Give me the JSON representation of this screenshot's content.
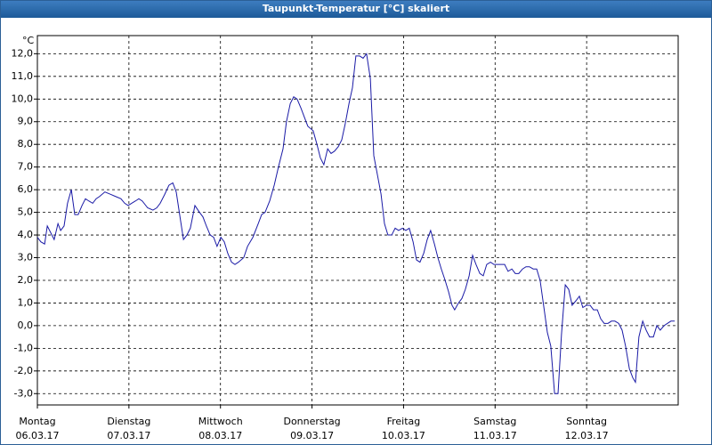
{
  "chart_data": {
    "type": "line",
    "title": "Taupunkt-Temperatur [°C] skaliert",
    "y_unit": "°C",
    "xlim": [
      0,
      168
    ],
    "ylim": [
      -3.5,
      12.8
    ],
    "grid": true,
    "xticks": [
      {
        "value": 0,
        "label": "Montag",
        "sublabel": "06.03.17"
      },
      {
        "value": 24,
        "label": "Dienstag",
        "sublabel": "07.03.17"
      },
      {
        "value": 48,
        "label": "Mittwoch",
        "sublabel": "08.03.17"
      },
      {
        "value": 72,
        "label": "Donnerstag",
        "sublabel": "09.03.17"
      },
      {
        "value": 96,
        "label": "Freitag",
        "sublabel": "10.03.17"
      },
      {
        "value": 120,
        "label": "Samstag",
        "sublabel": "11.03.17"
      },
      {
        "value": 144,
        "label": "Sonntag",
        "sublabel": "12.03.17"
      }
    ],
    "yticks": [
      {
        "value": 12,
        "label": "12,0"
      },
      {
        "value": 11,
        "label": "11,0"
      },
      {
        "value": 10,
        "label": "10,0"
      },
      {
        "value": 9,
        "label": "9,0"
      },
      {
        "value": 8,
        "label": "8,0"
      },
      {
        "value": 7,
        "label": "7,0"
      },
      {
        "value": 6,
        "label": "6,0"
      },
      {
        "value": 5,
        "label": "5,0"
      },
      {
        "value": 4,
        "label": "4,0"
      },
      {
        "value": 3,
        "label": "3,0"
      },
      {
        "value": 2,
        "label": "2,0"
      },
      {
        "value": 1,
        "label": "1,0"
      },
      {
        "value": 0,
        "label": "0,0"
      },
      {
        "value": -1,
        "label": "-1,0"
      },
      {
        "value": -2,
        "label": "-2,0"
      },
      {
        "value": -3,
        "label": "-3,0"
      }
    ],
    "series": [
      {
        "color": "#1a1aa6",
        "x": [
          0,
          0.9,
          1.9,
          2.6,
          3.5,
          4.4,
          5.4,
          6.1,
          7.0,
          7.9,
          8.9,
          9.8,
          10.7,
          11.7,
          12.6,
          13.5,
          14.5,
          15.4,
          16.3,
          17.7,
          19.1,
          20.5,
          21.9,
          22.9,
          23.8,
          24.7,
          25.7,
          26.6,
          27.5,
          28.9,
          30.3,
          31.3,
          32.2,
          33.4,
          34.5,
          35.5,
          36.4,
          37.3,
          38.3,
          39.2,
          40.1,
          41.3,
          42.5,
          43.4,
          44.3,
          45.3,
          46.2,
          47.1,
          48.1,
          49.0,
          49.9,
          50.9,
          51.8,
          52.7,
          54.1,
          55.1,
          56.5,
          57.9,
          58.8,
          59.7,
          60.9,
          62.1,
          63.2,
          64.4,
          65.3,
          66.3,
          67.2,
          68.1,
          69.1,
          70.0,
          70.9,
          72.3,
          73.3,
          74.2,
          75.1,
          76.1,
          77.0,
          77.9,
          78.9,
          79.8,
          80.7,
          81.7,
          82.6,
          83.5,
          84.5,
          85.4,
          86.3,
          87.3,
          88.2,
          89.1,
          90.1,
          91.0,
          91.9,
          92.9,
          93.8,
          94.7,
          95.7,
          96.6,
          97.5,
          98.5,
          99.4,
          100.3,
          101.3,
          102.2,
          103.1,
          104.1,
          105.0,
          105.9,
          106.9,
          107.8,
          108.7,
          109.4,
          110.4,
          111.3,
          112.2,
          113.2,
          114.1,
          115.0,
          116.0,
          116.9,
          117.8,
          118.8,
          119.7,
          120.6,
          121.6,
          122.5,
          123.4,
          124.4,
          125.3,
          126.2,
          127.2,
          128.1,
          129.0,
          130.0,
          130.9,
          131.8,
          132.8,
          133.7,
          134.6,
          135.6,
          136.5,
          137.4,
          138.4,
          139.3,
          140.2,
          141.2,
          142.1,
          143.0,
          144.0,
          144.9,
          145.8,
          146.8,
          147.7,
          148.6,
          149.6,
          150.5,
          151.4,
          152.4,
          153.3,
          154.2,
          155.2,
          156.1,
          156.8,
          157.7,
          158.7,
          159.6,
          160.5,
          161.5,
          162.4,
          163.3,
          164.3,
          165.2,
          166.1,
          167.1
        ],
        "values": [
          3.9,
          3.7,
          3.6,
          4.4,
          4.1,
          3.8,
          4.5,
          4.2,
          4.4,
          5.4,
          6.0,
          4.9,
          4.9,
          5.3,
          5.6,
          5.5,
          5.4,
          5.6,
          5.7,
          5.9,
          5.8,
          5.7,
          5.6,
          5.4,
          5.3,
          5.4,
          5.5,
          5.6,
          5.5,
          5.2,
          5.1,
          5.2,
          5.4,
          5.8,
          6.2,
          6.3,
          5.9,
          4.9,
          3.8,
          4.0,
          4.3,
          5.3,
          5.0,
          4.8,
          4.4,
          4.0,
          3.9,
          3.5,
          3.9,
          3.7,
          3.2,
          2.8,
          2.7,
          2.8,
          3.0,
          3.5,
          3.9,
          4.5,
          4.9,
          5.0,
          5.5,
          6.2,
          7.0,
          7.8,
          9.0,
          9.8,
          10.1,
          10.0,
          9.6,
          9.2,
          8.8,
          8.6,
          8.0,
          7.4,
          7.1,
          7.8,
          7.6,
          7.7,
          7.9,
          8.2,
          8.9,
          9.8,
          10.5,
          11.9,
          11.9,
          11.8,
          12.0,
          10.9,
          7.5,
          6.7,
          5.8,
          4.5,
          4.0,
          4.0,
          4.3,
          4.2,
          4.3,
          4.2,
          4.3,
          3.7,
          2.9,
          2.8,
          3.2,
          3.8,
          4.2,
          3.6,
          3.0,
          2.5,
          2.0,
          1.5,
          0.9,
          0.7,
          1.0,
          1.2,
          1.6,
          2.2,
          3.1,
          2.7,
          2.3,
          2.2,
          2.7,
          2.8,
          2.7,
          2.7,
          2.7,
          2.7,
          2.4,
          2.5,
          2.3,
          2.3,
          2.5,
          2.6,
          2.6,
          2.5,
          2.5,
          2.0,
          0.8,
          -0.3,
          -0.9,
          -3.0,
          -3.0,
          -0.4,
          1.8,
          1.6,
          0.9,
          1.1,
          1.3,
          0.8,
          0.9,
          0.9,
          0.7,
          0.7,
          0.3,
          0.1,
          0.1,
          0.2,
          0.2,
          0.1,
          -0.2,
          -0.9,
          -1.9,
          -2.3,
          -2.5,
          -0.5,
          0.2,
          -0.2,
          -0.5,
          -0.5,
          0.0,
          -0.2,
          0.0,
          0.1,
          0.2,
          0.2
        ]
      }
    ]
  }
}
